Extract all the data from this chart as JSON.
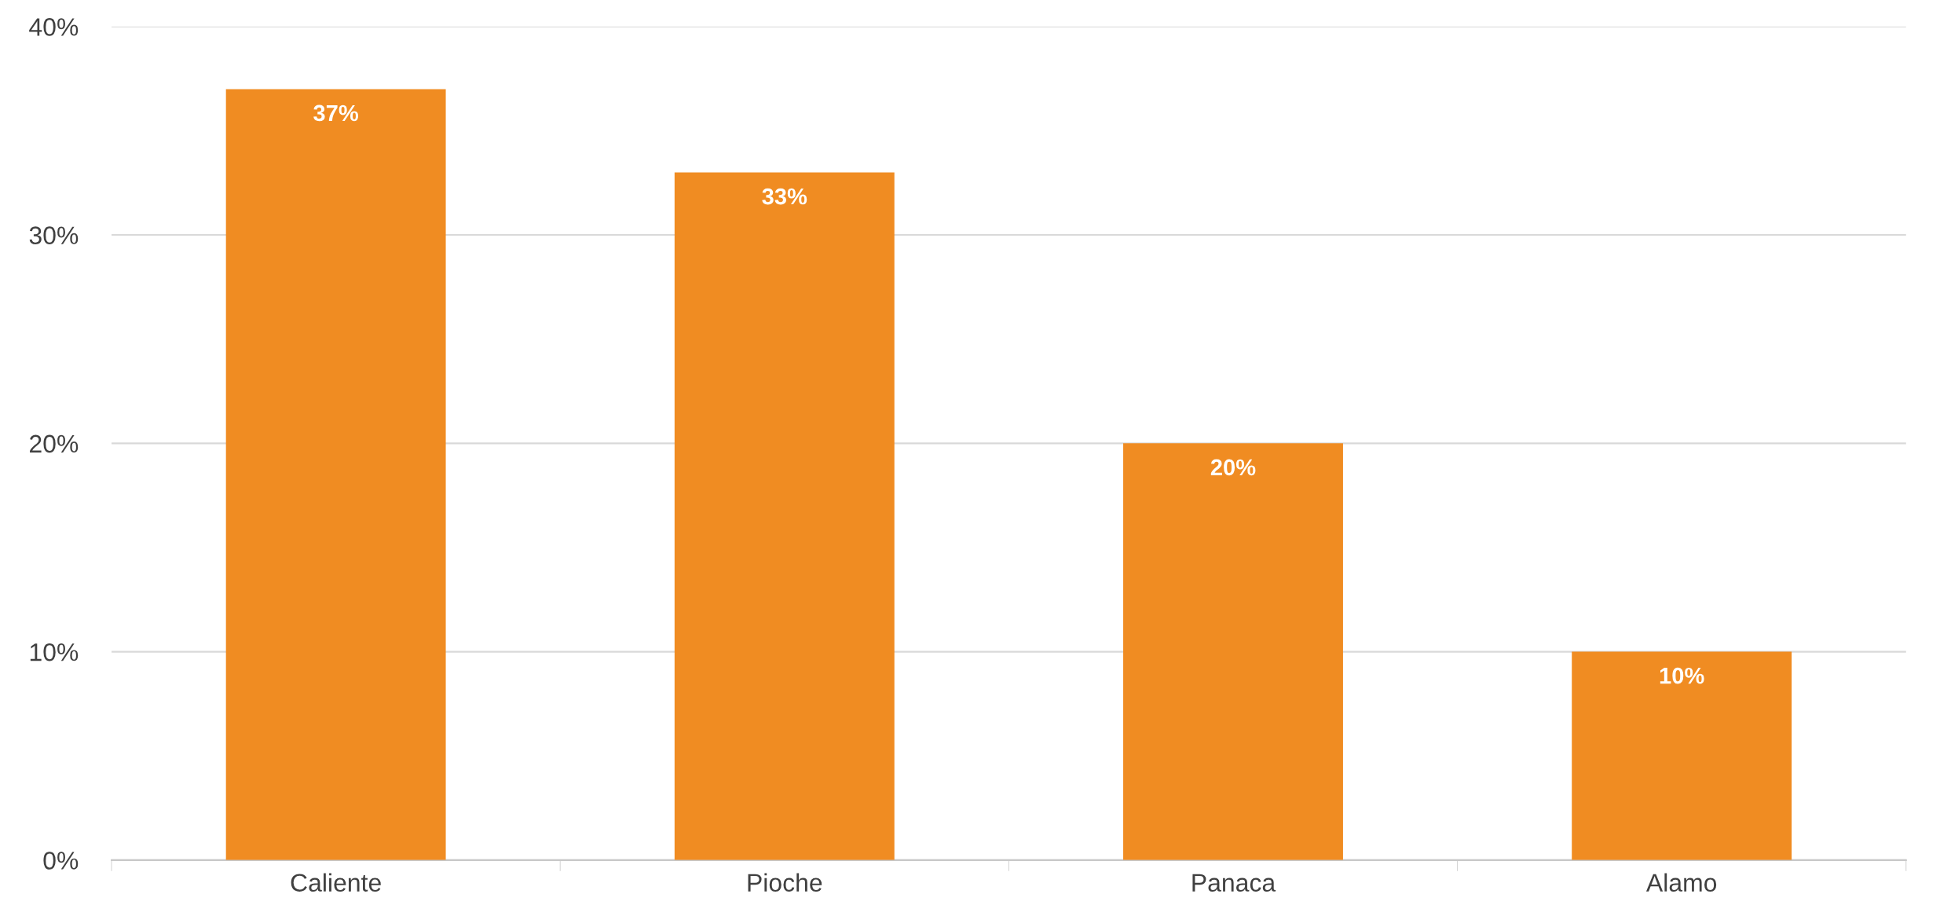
{
  "chart_data": {
    "type": "bar",
    "categories": [
      "Caliente",
      "Pioche",
      "Panaca",
      "Alamo"
    ],
    "values": [
      37,
      33,
      20,
      10
    ],
    "color": "#f08c22",
    "value_labels": [
      "37%",
      "33%",
      "20%",
      "10%"
    ],
    "ylim": [
      0,
      40
    ],
    "yticks": [
      {
        "value": 0,
        "label": "0%"
      },
      {
        "value": 10,
        "label": "10%"
      },
      {
        "value": 20,
        "label": "20%"
      },
      {
        "value": 30,
        "label": "30%"
      },
      {
        "value": 40,
        "label": "40%"
      }
    ],
    "grid": "y",
    "legend": false
  }
}
